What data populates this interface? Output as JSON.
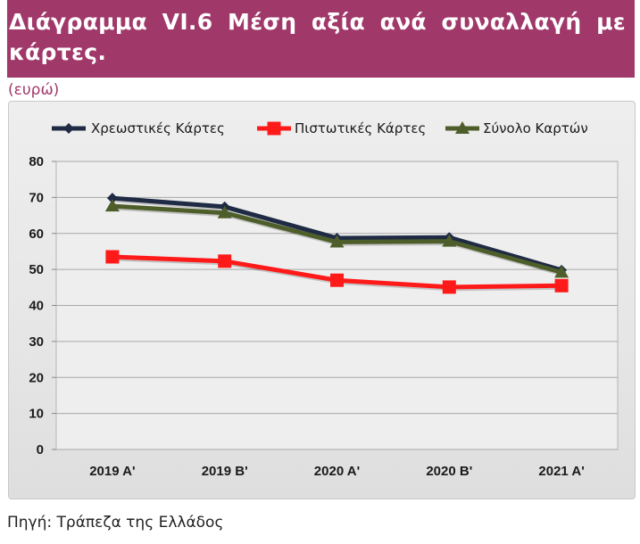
{
  "header": {
    "title": "Διάγραμμα VI.6 Μέση αξία ανά συναλλαγή με κάρτες.",
    "unit": "(ευρώ)"
  },
  "footer": {
    "source": "Πηγή: Τράπεζα της Ελλάδος"
  },
  "chart_data": {
    "type": "line",
    "title": "",
    "xlabel": "",
    "ylabel": "",
    "categories": [
      "2019 Α'",
      "2019 Β'",
      "2020 Α'",
      "2020 Β'",
      "2021 Α'"
    ],
    "ylim": [
      0,
      80
    ],
    "yticks": [
      0,
      10,
      20,
      30,
      40,
      50,
      60,
      70,
      80
    ],
    "grid": true,
    "legend_position": "top",
    "series": [
      {
        "name": "Χρεωστικές Κάρτες",
        "values": [
          69.8,
          67.4,
          58.7,
          58.9,
          49.8
        ],
        "color": "#1f2a44",
        "marker": "diamond"
      },
      {
        "name": "Πιστωτικές Κάρτες",
        "values": [
          53.5,
          52.3,
          47.0,
          45.1,
          45.5
        ],
        "color": "#ff1a1a",
        "marker": "square"
      },
      {
        "name": "Σύνολο Καρτών",
        "values": [
          67.6,
          65.7,
          57.6,
          57.8,
          49.2
        ],
        "color": "#4e5e2a",
        "marker": "triangle"
      }
    ]
  }
}
